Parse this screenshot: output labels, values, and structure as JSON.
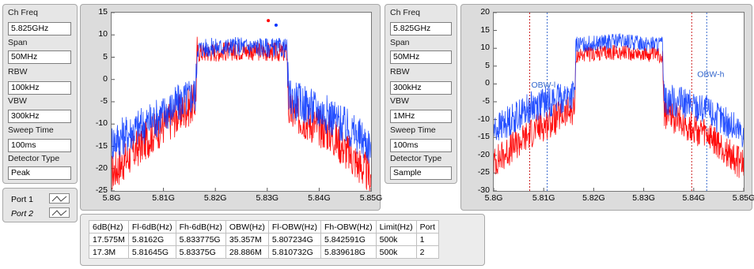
{
  "settings_left": {
    "ch_freq_label": "Ch Freq",
    "ch_freq": "5.825GHz",
    "span_label": "Span",
    "span": "50MHz",
    "rbw_label": "RBW",
    "rbw": "100kHz",
    "vbw_label": "VBW",
    "vbw": "300kHz",
    "sweep_label": "Sweep Time",
    "sweep": "100ms",
    "detector_label": "Detector Type",
    "detector": "Peak"
  },
  "settings_right": {
    "ch_freq_label": "Ch Freq",
    "ch_freq": "5.825GHz",
    "span_label": "Span",
    "span": "50MHz",
    "rbw_label": "RBW",
    "rbw": "300kHz",
    "vbw_label": "VBW",
    "vbw": "1MHz",
    "sweep_label": "Sweep Time",
    "sweep": "100ms",
    "detector_label": "Detector Type",
    "detector": "Sample"
  },
  "ports": {
    "port1": "Port 1",
    "port2": "Port 2"
  },
  "colors": {
    "port1": "#ff0000",
    "port2": "#0033ff"
  },
  "chart_data": [
    {
      "type": "line",
      "x_ticks": [
        "5.8G",
        "5.81G",
        "5.82G",
        "5.83G",
        "5.84G",
        "5.85G"
      ],
      "y_ticks": [
        "15",
        "10",
        "5",
        "0",
        "-5",
        "-10",
        "-15",
        "-20",
        "-25"
      ],
      "xlim": [
        5.8,
        5.85
      ],
      "ylim": [
        -25,
        15
      ],
      "series": [
        {
          "color": "#ff0000",
          "x": [
            5.8,
            5.8081,
            5.8162,
            5.8165,
            5.825,
            5.8338,
            5.8341,
            5.842,
            5.85
          ],
          "y": [
            -21,
            -12,
            -5,
            6,
            6.5,
            6,
            -7,
            -12,
            -22
          ]
        },
        {
          "color": "#0033ff",
          "x": [
            5.8,
            5.8081,
            5.8162,
            5.8165,
            5.825,
            5.8338,
            5.8341,
            5.842,
            5.85
          ],
          "y": [
            -14,
            -9,
            -3,
            7,
            7.5,
            7,
            -4,
            -8,
            -15
          ]
        }
      ]
    },
    {
      "type": "line",
      "x_ticks": [
        "5.8G",
        "5.81G",
        "5.82G",
        "5.83G",
        "5.84G",
        "5.85G"
      ],
      "y_ticks": [
        "20",
        "15",
        "10",
        "5",
        "0",
        "-5",
        "-10",
        "-15",
        "-20",
        "-25",
        "-30"
      ],
      "xlim": [
        5.8,
        5.85
      ],
      "ylim": [
        -30,
        20
      ],
      "annotations": [
        "OBW-l",
        "OBW-h"
      ],
      "series": [
        {
          "color": "#ff0000",
          "x": [
            5.8,
            5.8081,
            5.8162,
            5.8165,
            5.825,
            5.8338,
            5.8341,
            5.842,
            5.85
          ],
          "y": [
            -22,
            -13,
            -7,
            8,
            9,
            8,
            -8,
            -14,
            -23
          ]
        },
        {
          "color": "#0033ff",
          "x": [
            5.8,
            5.8081,
            5.8162,
            5.8165,
            5.825,
            5.8338,
            5.8341,
            5.842,
            5.85
          ],
          "y": [
            -13,
            -6,
            -3,
            11,
            12,
            11,
            -4,
            -7,
            -14
          ]
        }
      ],
      "markers": [
        5.8072,
        5.8107,
        5.8396,
        5.8426
      ]
    }
  ],
  "results": {
    "headers": [
      "6dB(Hz)",
      "Fl-6dB(Hz)",
      "Fh-6dB(Hz)",
      "OBW(Hz)",
      "Fl-OBW(Hz)",
      "Fh-OBW(Hz)",
      "Limit(Hz)",
      "Port"
    ],
    "rows": [
      [
        "17.575M",
        "5.8162G",
        "5.833775G",
        "35.357M",
        "5.807234G",
        "5.842591G",
        "500k",
        "1"
      ],
      [
        "17.3M",
        "5.81645G",
        "5.83375G",
        "28.886M",
        "5.810732G",
        "5.839618G",
        "500k",
        "2"
      ]
    ]
  }
}
